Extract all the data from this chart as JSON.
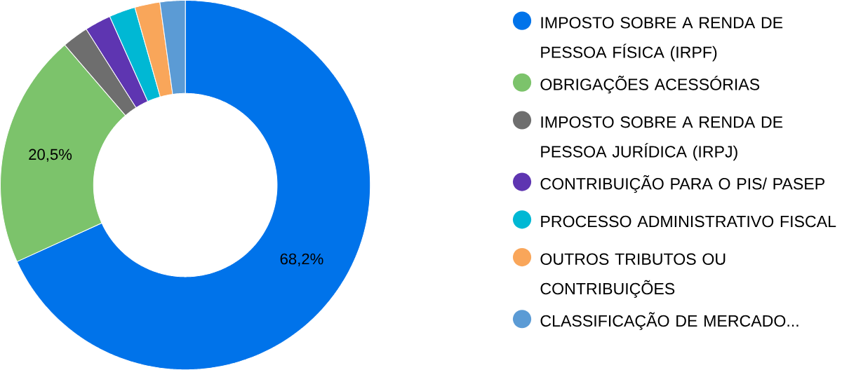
{
  "chart_data": {
    "type": "donut",
    "categories": [
      "IMPOSTO SOBRE A RENDA DE PESSOA FÍSICA (IRPF)",
      "OBRIGAÇÕES ACESSÓRIAS",
      "IMPOSTO SOBRE A RENDA DE PESSOA JURÍDICA (IRPJ)",
      "CONTRIBUIÇÃO PARA O PIS/ PASEP",
      "PROCESSO ADMINISTRATIVO FISCAL",
      "OUTROS TRIBUTOS OU CONTRIBUIÇÕES",
      "CLASSIFICAÇÃO DE MERCADO..."
    ],
    "values": [
      68.2,
      20.5,
      2.3,
      2.3,
      2.3,
      2.2,
      2.2
    ],
    "colors": [
      "#0073ea",
      "#7cc36b",
      "#6e6e6e",
      "#5e35b1",
      "#00b8d4",
      "#f9a65a",
      "#5b9bd5"
    ],
    "value_labels": [
      "68,2%",
      "20,5%",
      null,
      null,
      null,
      null,
      null
    ],
    "legend": "right"
  }
}
